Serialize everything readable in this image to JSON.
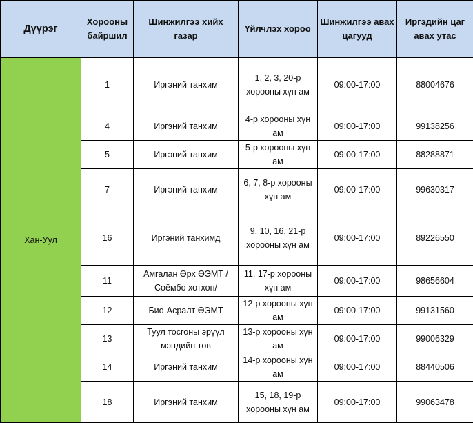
{
  "header": [
    "Дүүрэг",
    "Хорооны байршил",
    "Шинжилгээ хийх газар",
    "Үйлчлэх хороо",
    "Шинжилгээ авах цагууд",
    "Иргэдийн цаг авах утас"
  ],
  "district": "Хан-Уул",
  "colors": {
    "header_bg": "#c6d9f0",
    "district_bg": "#92d050"
  },
  "rows": [
    {
      "khoroo": "1",
      "place": "Иргэний танхим",
      "serves": "1, 2, 3, 20-р хорооны хүн ам",
      "hours": "09:00-17:00",
      "phone": "88004676"
    },
    {
      "khoroo": "4",
      "place": "Иргэний танхим",
      "serves": "4-р хорооны хүн ам",
      "hours": "09:00-17:00",
      "phone": "99138256"
    },
    {
      "khoroo": "5",
      "place": "Иргэний танхим",
      "serves": "5-р хорооны хүн ам",
      "hours": "09:00-17:00",
      "phone": "88288871"
    },
    {
      "khoroo": "7",
      "place": "Иргэний танхим",
      "serves": "6, 7, 8-р хорооны хүн ам",
      "hours": "09:00-17:00",
      "phone": "99630317"
    },
    {
      "khoroo": "16",
      "place": "Иргэний танхимд",
      "serves": "9, 10, 16, 21-р хорооны хүн ам",
      "hours": "09:00-17:00",
      "phone": "89226550"
    },
    {
      "khoroo": "11",
      "place": "Амгалан Өрх ӨЭМТ /Соёмбо хотхон/",
      "serves": "11, 17-р хорооны хүн ам",
      "hours": "09:00-17:00",
      "phone": "98656604"
    },
    {
      "khoroo": "12",
      "place": "Био-Асралт ӨЭМТ",
      "serves": "12-р хорооны хүн ам",
      "hours": "09:00-17:00",
      "phone": "99131560"
    },
    {
      "khoroo": "13",
      "place": "Туул тосгоны эрүүл мэндийн төв",
      "serves": "13-р хорооны хүн ам",
      "hours": "09:00-17:00",
      "phone": "99006329"
    },
    {
      "khoroo": "14",
      "place": "Иргэний танхим",
      "serves": "14-р хорооны хүн ам",
      "hours": "09:00-17:00",
      "phone": "88440506"
    },
    {
      "khoroo": "18",
      "place": "Иргэний танхим",
      "serves": "15, 18, 19-р хорооны хүн ам",
      "hours": "09:00-17:00",
      "phone": "99063478"
    }
  ]
}
